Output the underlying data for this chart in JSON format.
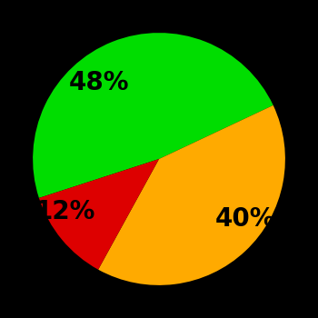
{
  "slices": [
    48,
    40,
    12
  ],
  "colors": [
    "#00dd00",
    "#ffaa00",
    "#dd0000"
  ],
  "labels": [
    "48%",
    "40%",
    "12%"
  ],
  "background_color": "#000000",
  "startangle": 198,
  "figsize": [
    3.5,
    3.5
  ],
  "dpi": 100,
  "label_fontsize": 20,
  "label_fontweight": "bold"
}
